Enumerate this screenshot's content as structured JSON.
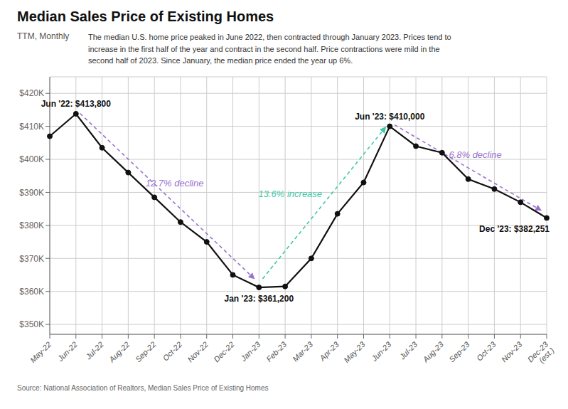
{
  "chart_data": {
    "type": "line",
    "title": "Median Sales Price of Existing Homes",
    "subtitle": "TTM, Monthly",
    "description": "The median U.S. home price peaked in June 2022, then contracted through January 2023. Prices tend to\nincrease in the first half of the year and contract in the second half. Price contractions were mild in the\nsecond half of 2023. Since January, the median price ended the year up 6%.",
    "source": "Source:  National Association of Realtors, Median Sales Price of Existing Homes",
    "categories": [
      "May-22",
      "Jun-22",
      "Jul-22",
      "Aug-22",
      "Sep-22",
      "Oct-22",
      "Nov-22",
      "Dec-22",
      "Jan-23",
      "Feb-23",
      "Mar-23",
      "Apr-23",
      "May-23",
      "Jun-23",
      "Jul-23",
      "Aug-23",
      "Sep-23",
      "Oct-23",
      "Nov-23",
      "Dec-23\n(est.)"
    ],
    "values": [
      407000,
      413800,
      403500,
      396000,
      388500,
      381000,
      375000,
      365000,
      361200,
      361500,
      370000,
      383500,
      393000,
      410000,
      404000,
      402000,
      394000,
      391000,
      387000,
      382251
    ],
    "color": "#111111",
    "marker": "circle",
    "ylim": [
      347000,
      425000
    ],
    "yticks": [
      {
        "value": 350000,
        "label": "$350K"
      },
      {
        "value": 360000,
        "label": "$360K"
      },
      {
        "value": 370000,
        "label": "$370K"
      },
      {
        "value": 380000,
        "label": "$380K"
      },
      {
        "value": 390000,
        "label": "$390K"
      },
      {
        "value": 400000,
        "label": "$400K"
      },
      {
        "value": 410000,
        "label": "$410K"
      },
      {
        "value": 420000,
        "label": "$420K"
      }
    ],
    "grid": true,
    "annotations": [
      {
        "text": "12.7% decline",
        "color": "#9b72cf",
        "from": "Jun-22",
        "to": "Jan-23"
      },
      {
        "text": "13.6% increase",
        "color": "#3ec9a7",
        "from": "Jan-23",
        "to": "Jun-23"
      },
      {
        "text": "6.8% decline",
        "color": "#9b72cf",
        "from": "Jun-23",
        "to": "Dec-23\n(est.)"
      },
      {
        "text": "Jun '22: $413,800",
        "x": "Jun-22"
      },
      {
        "text": "Jan '23: $361,200",
        "x": "Jan-23"
      },
      {
        "text": "Jun '23: $410,000",
        "x": "Jun-23"
      },
      {
        "text": "Dec '23: $382,251",
        "x": "Dec-23\n(est.)"
      }
    ]
  }
}
